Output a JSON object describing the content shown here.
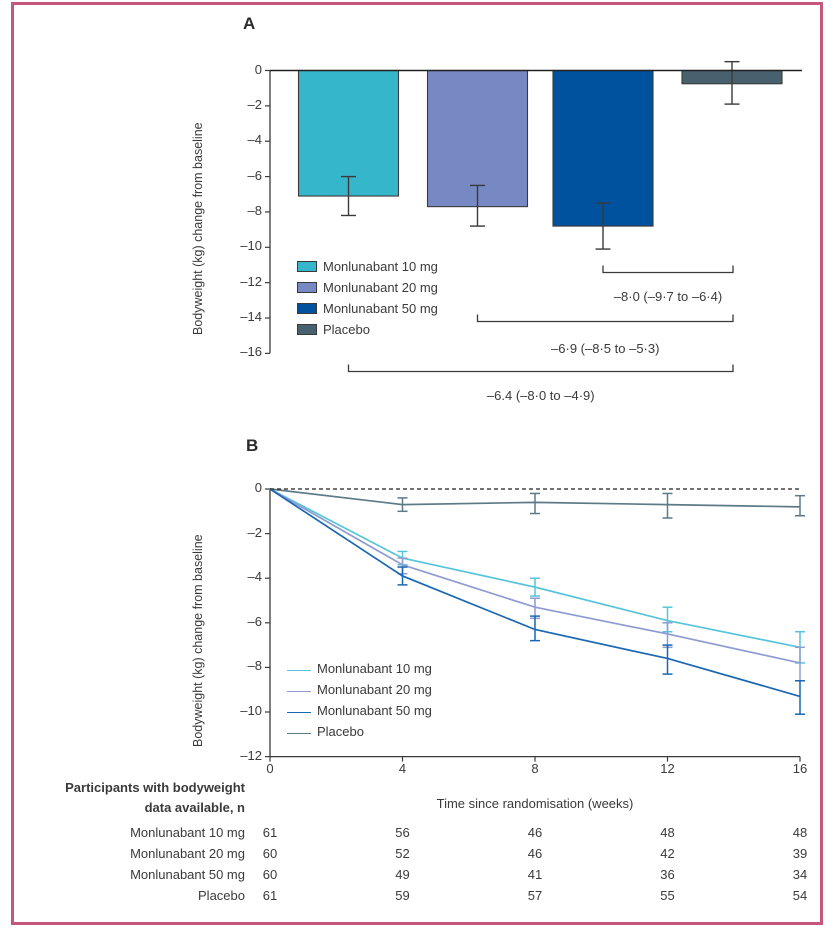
{
  "frame": {
    "border_color": "#c4577c",
    "background": "#ffffff"
  },
  "chart_data": [
    {
      "type": "bar",
      "panel_label": "A",
      "ylabel": "Bodyweight (kg) change from baseline",
      "ylim": [
        -16,
        0
      ],
      "yticks": [
        0,
        -2,
        -4,
        -6,
        -8,
        -10,
        -12,
        -14,
        -16
      ],
      "ytick_labels": [
        "0",
        "–2",
        "–4",
        "–6",
        "–8",
        "–10",
        "–12",
        "–14",
        "–16"
      ],
      "grid": false,
      "legend_position": "lower-left-inside",
      "categories": [
        "Monlunabant 10 mg",
        "Monlunabant 20 mg",
        "Monlunabant 50 mg",
        "Placebo"
      ],
      "values": [
        -7.1,
        -7.7,
        -8.8,
        -0.75
      ],
      "ci_high": [
        -6.0,
        -6.5,
        -7.5,
        0.5
      ],
      "ci_low": [
        -8.2,
        -8.8,
        -10.1,
        -1.9
      ],
      "colors": [
        "#35b6cb",
        "#7689c2",
        "#00529e",
        "#47626e"
      ],
      "comparisons": [
        {
          "bar_index": 2,
          "vs_index": 3,
          "label": "–8·0 (–9·7 to –6·4)"
        },
        {
          "bar_index": 1,
          "vs_index": 3,
          "label": "–6·9 (–8·5 to –5·3)"
        },
        {
          "bar_index": 0,
          "vs_index": 3,
          "label": "–6.4 (–8·0 to –4·9)"
        }
      ]
    },
    {
      "type": "line",
      "panel_label": "B",
      "xlabel": "Time since randomisation (weeks)",
      "ylabel": "Bodyweight (kg) change from baseline",
      "x": [
        0,
        4,
        8,
        12,
        16
      ],
      "xtick_labels": [
        "0",
        "4",
        "8",
        "12",
        "16"
      ],
      "ylim": [
        -12,
        0
      ],
      "yticks": [
        0,
        -2,
        -4,
        -6,
        -8,
        -10,
        -12
      ],
      "ytick_labels": [
        "0",
        "–2",
        "–4",
        "–6",
        "–8",
        "–10",
        "–12"
      ],
      "zero_reference_line": "dashed",
      "grid": false,
      "legend_position": "lower-left-inside",
      "series": [
        {
          "name": "Monlunabant 10 mg",
          "color": "#56c4da",
          "values": [
            0,
            -3.1,
            -4.4,
            -5.9,
            -7.1
          ],
          "ci_high": [
            0,
            -2.8,
            -4.0,
            -5.3,
            -6.4
          ],
          "ci_low": [
            0,
            -3.4,
            -4.8,
            -6.4,
            -7.8
          ]
        },
        {
          "name": "Monlunabant 20 mg",
          "color": "#8e9cd2",
          "values": [
            0,
            -3.4,
            -5.3,
            -6.5,
            -7.8
          ],
          "ci_high": [
            0,
            -3.1,
            -4.9,
            -6.0,
            -7.1
          ],
          "ci_low": [
            0,
            -3.8,
            -5.8,
            -7.1,
            -8.6
          ]
        },
        {
          "name": "Monlunabant 50 mg",
          "color": "#1a67b2",
          "values": [
            0,
            -3.9,
            -6.3,
            -7.6,
            -9.3
          ],
          "ci_high": [
            0,
            -3.5,
            -5.7,
            -7.0,
            -8.6
          ],
          "ci_low": [
            0,
            -4.3,
            -6.8,
            -8.3,
            -10.1
          ]
        },
        {
          "name": "Placebo",
          "color": "#5d7a87",
          "values": [
            0,
            -0.7,
            -0.6,
            -0.7,
            -0.8
          ],
          "ci_high": [
            0,
            -0.4,
            -0.2,
            -0.2,
            -0.3
          ],
          "ci_low": [
            0,
            -1.0,
            -1.1,
            -1.3,
            -1.2
          ]
        }
      ]
    }
  ],
  "participants_table": {
    "title_lines": [
      "Participants with bodyweight",
      "data available, n"
    ],
    "rows": [
      {
        "label": "Monlunabant 10 mg",
        "values": [
          "61",
          "56",
          "46",
          "48",
          "48"
        ]
      },
      {
        "label": "Monlunabant 20 mg",
        "values": [
          "60",
          "52",
          "46",
          "42",
          "39"
        ]
      },
      {
        "label": "Monlunabant 50 mg",
        "values": [
          "60",
          "49",
          "41",
          "36",
          "34"
        ]
      },
      {
        "label": "Placebo",
        "values": [
          "61",
          "59",
          "57",
          "55",
          "54"
        ]
      }
    ]
  }
}
